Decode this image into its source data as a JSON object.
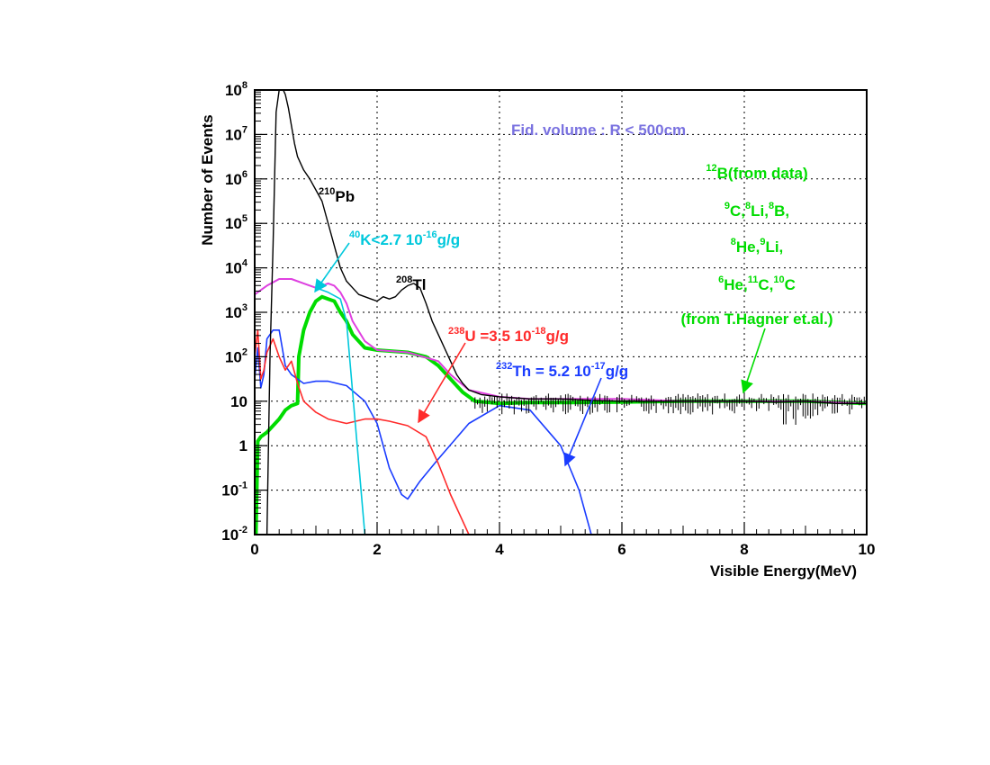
{
  "chart_data": {
    "type": "line",
    "title": "Fid. volume : R < 500cm",
    "xlabel": "Visible Energy(MeV)",
    "ylabel": "Number of Events",
    "xlim": [
      0,
      10
    ],
    "ylim_log10": [
      -2,
      8
    ],
    "x_ticks": [
      "0",
      "2",
      "4",
      "6",
      "8",
      "10"
    ],
    "y_ticks": [
      {
        "exp": -2,
        "base": "10",
        "sup": "-2"
      },
      {
        "exp": -1,
        "base": "10",
        "sup": "-1"
      },
      {
        "exp": 0,
        "base": "1",
        "sup": ""
      },
      {
        "exp": 1,
        "base": "10",
        "sup": ""
      },
      {
        "exp": 2,
        "base": "10",
        "sup": "2"
      },
      {
        "exp": 3,
        "base": "10",
        "sup": "3"
      },
      {
        "exp": 4,
        "base": "10",
        "sup": "4"
      },
      {
        "exp": 5,
        "base": "10",
        "sup": "5"
      },
      {
        "exp": 6,
        "base": "10",
        "sup": "6"
      },
      {
        "exp": 7,
        "base": "10",
        "sup": "7"
      },
      {
        "exp": 8,
        "base": "10",
        "sup": "8"
      }
    ],
    "grid": true,
    "series": [
      {
        "name": "total (black)",
        "color": "#000000",
        "width": 1.4,
        "x": [
          0.05,
          0.1,
          0.15,
          0.2,
          0.25,
          0.3,
          0.35,
          0.4,
          0.45,
          0.5,
          0.55,
          0.6,
          0.65,
          0.7,
          0.8,
          0.9,
          1.0,
          1.1,
          1.2,
          1.3,
          1.4,
          1.5,
          1.6,
          1.7,
          1.8,
          1.9,
          2.0,
          2.1,
          2.2,
          2.3,
          2.4,
          2.5,
          2.6,
          2.7,
          2.8,
          2.9,
          3.0,
          3.1,
          3.2,
          3.3,
          3.4,
          3.5,
          3.7,
          4.0,
          4.5,
          5.0,
          5.5,
          6.0,
          6.5,
          7.0,
          7.5,
          8.0,
          8.5,
          9.0,
          9.5,
          10.0
        ],
        "log10y": [
          -2,
          -2,
          -2,
          -2,
          2.0,
          4.5,
          7.5,
          8.0,
          8.05,
          7.9,
          7.6,
          7.2,
          6.8,
          6.5,
          6.2,
          6.0,
          5.75,
          5.5,
          5.0,
          4.5,
          4.0,
          3.7,
          3.55,
          3.4,
          3.35,
          3.3,
          3.25,
          3.35,
          3.3,
          3.35,
          3.5,
          3.6,
          3.65,
          3.55,
          3.2,
          2.8,
          2.5,
          2.2,
          1.9,
          1.6,
          1.4,
          1.25,
          1.15,
          1.1,
          1.05,
          1.05,
          1.02,
          1.0,
          1.0,
          1.0,
          1.0,
          1.0,
          0.98,
          1.0,
          0.95,
          0.95
        ]
      },
      {
        "name": "40K (cyan)",
        "color": "#00c8dc",
        "width": 1.6,
        "x": [
          0.0,
          0.2,
          0.4,
          0.6,
          0.8,
          1.0,
          1.2,
          1.4,
          1.5,
          1.55,
          1.6,
          1.65,
          1.7,
          1.75,
          1.8
        ],
        "log10y": [
          3.4,
          3.6,
          3.75,
          3.75,
          3.65,
          3.55,
          3.45,
          3.3,
          2.8,
          2.0,
          1.2,
          0.4,
          -0.4,
          -1.2,
          -2.0
        ]
      },
      {
        "name": "magenta",
        "color": "#e040e0",
        "width": 2,
        "x": [
          0.0,
          0.2,
          0.4,
          0.6,
          0.8,
          1.0,
          1.1,
          1.2,
          1.3,
          1.4,
          1.5,
          1.6,
          1.8,
          2.0,
          2.5,
          3.0,
          3.2,
          3.5,
          4.0,
          4.5,
          5.0,
          6.0,
          7.0,
          8.0,
          9.0,
          10.0
        ],
        "log10y": [
          3.4,
          3.6,
          3.75,
          3.75,
          3.65,
          3.55,
          3.6,
          3.65,
          3.6,
          3.45,
          3.2,
          2.8,
          2.35,
          2.15,
          2.1,
          1.9,
          1.6,
          1.25,
          1.1,
          1.05,
          1.05,
          1.05,
          1.0,
          1.0,
          1.0,
          0.95
        ]
      },
      {
        "name": "12B etc. (green)",
        "color": "#00dc00",
        "width": 4,
        "x": [
          0.02,
          0.05,
          0.1,
          0.2,
          0.3,
          0.4,
          0.5,
          0.6,
          0.7,
          0.72,
          0.8,
          0.9,
          1.0,
          1.1,
          1.2,
          1.3,
          1.4,
          1.5,
          1.6,
          1.8,
          2.0,
          2.5,
          2.8,
          3.0,
          3.2,
          3.4,
          3.6,
          4.0,
          4.5,
          5.0,
          6.0,
          7.0,
          8.0,
          9.0,
          10.0
        ],
        "log10y": [
          -2,
          0.1,
          0.2,
          0.3,
          0.45,
          0.6,
          0.8,
          0.9,
          0.95,
          2.0,
          2.6,
          3.0,
          3.25,
          3.35,
          3.3,
          3.25,
          3.0,
          2.8,
          2.5,
          2.2,
          2.15,
          2.1,
          2.0,
          1.8,
          1.5,
          1.2,
          1.0,
          0.95,
          0.97,
          0.97,
          0.98,
          1.0,
          1.0,
          1.0,
          0.95
        ]
      },
      {
        "name": "238U (red)",
        "color": "#ff2a2a",
        "width": 1.6,
        "x": [
          0.0,
          0.05,
          0.1,
          0.15,
          0.2,
          0.3,
          0.4,
          0.5,
          0.6,
          0.7,
          0.8,
          1.0,
          1.2,
          1.5,
          1.8,
          2.0,
          2.2,
          2.5,
          2.8,
          3.0,
          3.2,
          3.5
        ],
        "log10y": [
          2.0,
          2.6,
          1.5,
          1.7,
          2.1,
          2.4,
          2.0,
          1.7,
          1.9,
          1.4,
          1.0,
          0.75,
          0.6,
          0.5,
          0.6,
          0.6,
          0.55,
          0.45,
          0.2,
          -0.4,
          -1.1,
          -2.0
        ]
      },
      {
        "name": "232Th (blue)",
        "color": "#1a3cff",
        "width": 1.6,
        "x": [
          0.0,
          0.05,
          0.1,
          0.15,
          0.2,
          0.3,
          0.4,
          0.5,
          0.6,
          0.7,
          0.8,
          1.0,
          1.2,
          1.5,
          1.8,
          2.0,
          2.2,
          2.4,
          2.5,
          2.7,
          3.0,
          3.5,
          4.0,
          4.5,
          5.0,
          5.3,
          5.5
        ],
        "log10y": [
          1.5,
          2.2,
          1.3,
          1.6,
          2.4,
          2.6,
          2.6,
          1.8,
          1.6,
          1.5,
          1.4,
          1.45,
          1.45,
          1.35,
          1.0,
          0.5,
          -0.5,
          -1.1,
          -1.2,
          -0.8,
          -0.3,
          0.5,
          0.9,
          0.8,
          0.0,
          -1.0,
          -2.0
        ]
      }
    ],
    "annotations": [
      {
        "id": "pb",
        "color": "#000000",
        "sup": "210",
        "text": "Pb"
      },
      {
        "id": "tl",
        "color": "#000000",
        "sup": "208",
        "text": "Tl"
      },
      {
        "id": "k",
        "color": "#00c8dc",
        "sup": "40",
        "text": "K<2.7  10",
        "sup2": "-16",
        "text2": "g/g"
      },
      {
        "id": "u",
        "color": "#ff2a2a",
        "sup": "238",
        "text": "U =3.5  10",
        "sup2": "-18",
        "text2": "g/g"
      },
      {
        "id": "th",
        "color": "#1a3cff",
        "sup": "232",
        "text": "Th = 5.2  10",
        "sup2": "-17",
        "text2": "g/g"
      }
    ],
    "green_labels": [
      {
        "parts": [
          {
            "sup": "12"
          },
          {
            "t": "B(from data)"
          }
        ]
      },
      {
        "parts": [
          {
            "sup": "9"
          },
          {
            "t": "C,"
          },
          {
            "sup": "8"
          },
          {
            "t": "Li,"
          },
          {
            "sup": "8"
          },
          {
            "t": "B,"
          }
        ]
      },
      {
        "parts": [
          {
            "sup": "8"
          },
          {
            "t": "He,"
          },
          {
            "sup": "9"
          },
          {
            "t": "Li,"
          }
        ]
      },
      {
        "parts": [
          {
            "sup": "6"
          },
          {
            "t": "He,"
          },
          {
            "sup": "11"
          },
          {
            "t": "C,"
          },
          {
            "sup": "10"
          },
          {
            "t": "C"
          }
        ]
      },
      {
        "parts": [
          {
            "t": "(from T.Hagner et.al.)"
          }
        ]
      }
    ],
    "colors": {
      "title": "#7a72e0",
      "green": "#00dc00"
    }
  }
}
